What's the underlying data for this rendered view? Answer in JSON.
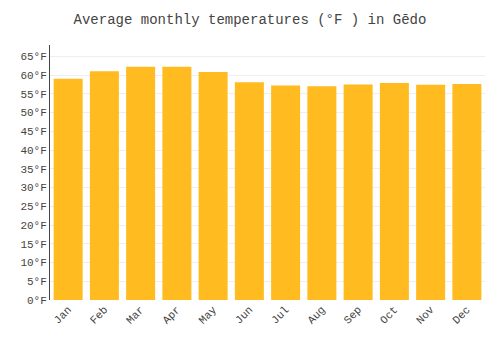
{
  "chart_data": {
    "type": "bar",
    "title": "Average monthly temperatures (°F ) in Gēdo",
    "categories": [
      "Jan",
      "Feb",
      "Mar",
      "Apr",
      "May",
      "Jun",
      "Jul",
      "Aug",
      "Sep",
      "Oct",
      "Nov",
      "Dec"
    ],
    "values": [
      59.0,
      61.0,
      62.2,
      62.2,
      60.8,
      58.1,
      57.2,
      57.0,
      57.5,
      57.9,
      57.4,
      57.6
    ],
    "color": "#FFBB20",
    "ylim": [
      0,
      68
    ],
    "yticks": [
      {
        "value": 0,
        "label": "0°F"
      },
      {
        "value": 5,
        "label": "5°F"
      },
      {
        "value": 10,
        "label": "10°F"
      },
      {
        "value": 15,
        "label": "15°F"
      },
      {
        "value": 20,
        "label": "20°F"
      },
      {
        "value": 25,
        "label": "25°F"
      },
      {
        "value": 30,
        "label": "30°F"
      },
      {
        "value": 35,
        "label": "35°F"
      },
      {
        "value": 40,
        "label": "40°F"
      },
      {
        "value": 45,
        "label": "45°F"
      },
      {
        "value": 50,
        "label": "50°F"
      },
      {
        "value": 55,
        "label": "55°F"
      },
      {
        "value": 60,
        "label": "60°F"
      },
      {
        "value": 65,
        "label": "65°F"
      }
    ],
    "grid": true
  }
}
